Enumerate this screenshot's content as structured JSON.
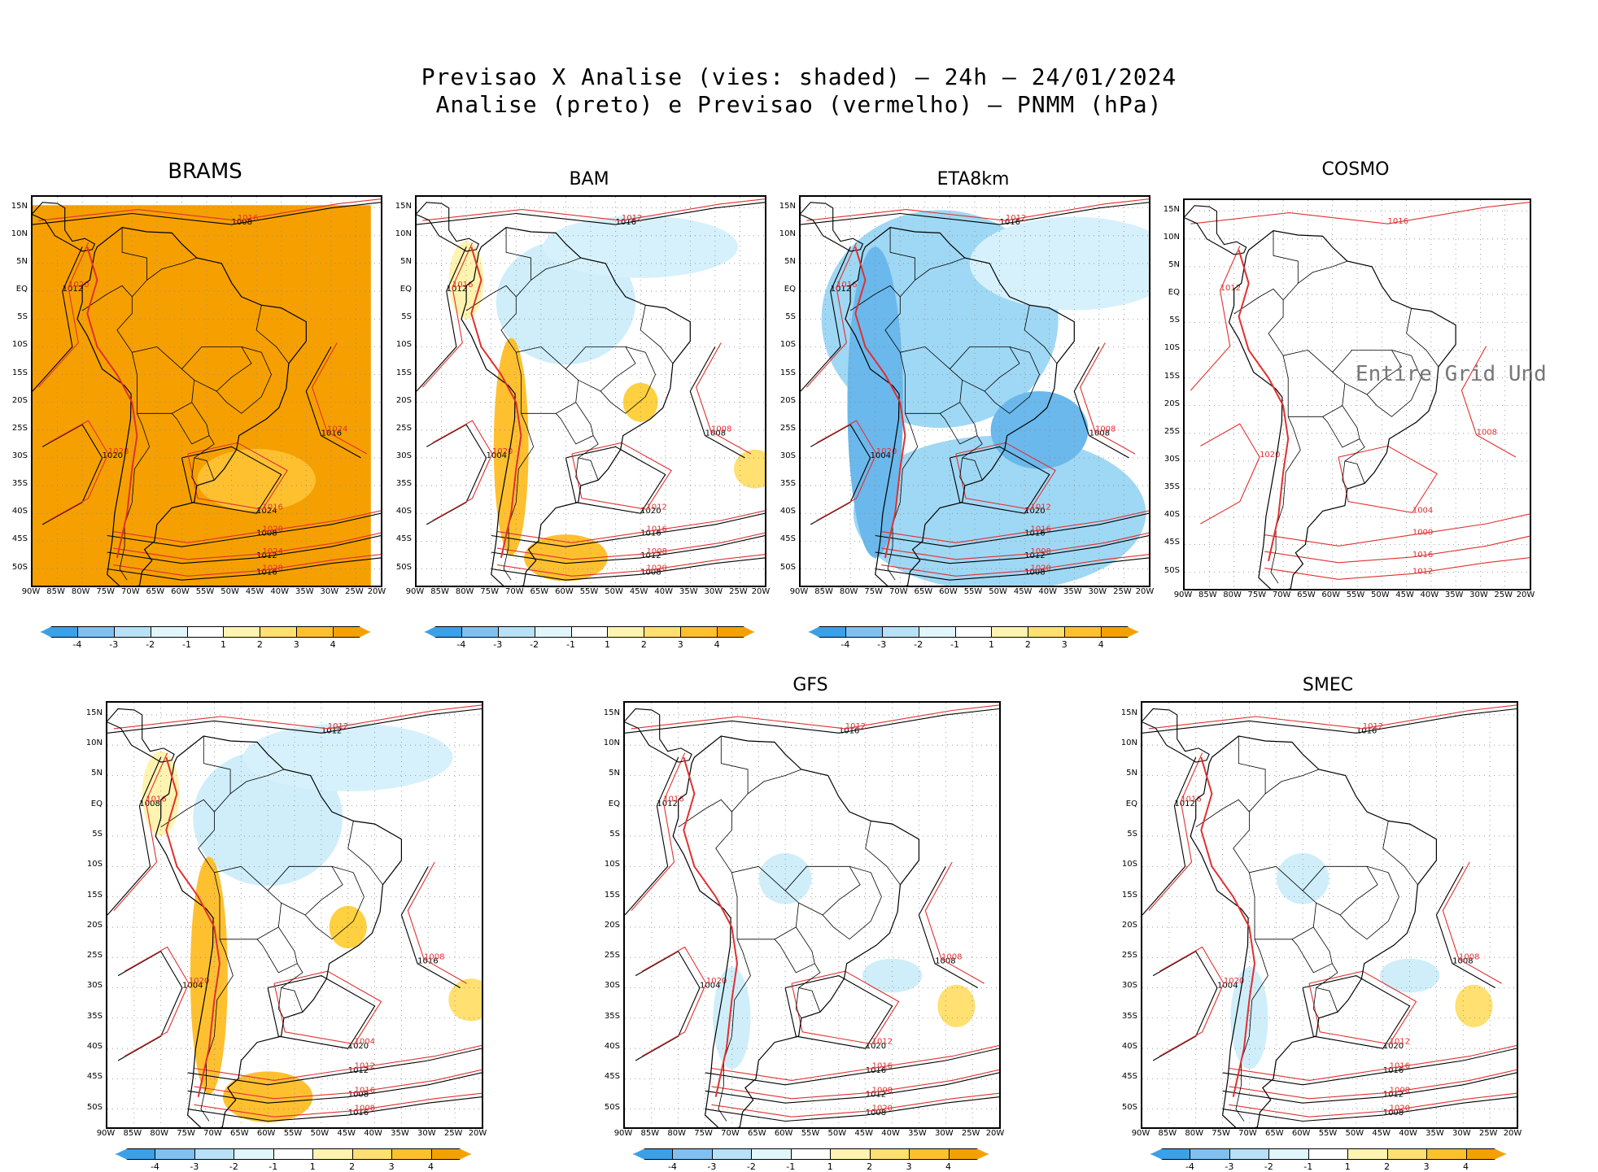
{
  "title": {
    "line1": "Previsao X Analise (vies: shaded) – 24h – 24/01/2024",
    "line2": "Analise (preto) e Previsao (vermelho) – PNMM (hPa)"
  },
  "axes": {
    "lat_labels": [
      "15N",
      "10N",
      "5N",
      "EQ",
      "5S",
      "10S",
      "15S",
      "20S",
      "25S",
      "30S",
      "35S",
      "40S",
      "45S",
      "50S"
    ],
    "lon_labels": [
      "90W",
      "85W",
      "80W",
      "75W",
      "70W",
      "65W",
      "60W",
      "55W",
      "50W",
      "45W",
      "40W",
      "35W",
      "30W",
      "25W",
      "20W"
    ]
  },
  "colorbar": {
    "ticks": [
      "-4",
      "-3",
      "-2",
      "-1",
      "1",
      "2",
      "3",
      "4"
    ],
    "colors": [
      "#3aa0e8",
      "#7fc0f0",
      "#b8e0f6",
      "#e0f6fb",
      "#ffffff",
      "#fff3b0",
      "#ffe070",
      "#ffc030",
      "#f6a000"
    ]
  },
  "colors": {
    "analysis": "#000000",
    "forecast": "#e03030",
    "neg_bias": "#9fd8f4",
    "pos_bias": "#ffd040",
    "full_pos": "#f5a000"
  },
  "panels": [
    {
      "id": "brams",
      "title": "BRAMS",
      "bias": "full",
      "isobars_a": [
        "1008",
        "1012",
        "1016",
        "1020",
        "1024"
      ],
      "isobars_f": [
        "1016",
        "1020",
        "1024",
        "1028"
      ]
    },
    {
      "id": "bam",
      "title": "BAM",
      "bias": "mixed",
      "isobars_a": [
        "1016",
        "1012",
        "1008",
        "1004",
        "1020"
      ],
      "isobars_f": [
        "1012",
        "1016",
        "1008",
        "1020"
      ]
    },
    {
      "id": "eta",
      "title": "ETA8km",
      "bias": "negative",
      "isobars_a": [
        "1016",
        "1012",
        "1008",
        "1004",
        "1020"
      ],
      "isobars_f": [
        "1012",
        "1016",
        "1008",
        "1020"
      ]
    },
    {
      "id": "cosmo",
      "title": "COSMO",
      "bias": "none",
      "undefined_text": "Entire Grid Und",
      "isobars_a": [],
      "isobars_f": [
        "1016",
        "1012",
        "1008",
        "1020",
        "1004",
        "1000"
      ]
    },
    {
      "id": "unnamed",
      "title": "",
      "bias": "mixed",
      "isobars_a": [
        "1012",
        "1008",
        "1016",
        "1004",
        "1020"
      ],
      "isobars_f": [
        "1012",
        "1016",
        "1008",
        "1020",
        "1004"
      ]
    },
    {
      "id": "gfs",
      "title": "GFS",
      "bias": "light",
      "isobars_a": [
        "1016",
        "1012",
        "1008",
        "1004",
        "1020"
      ],
      "isobars_f": [
        "1012",
        "1016",
        "1008",
        "1020"
      ]
    },
    {
      "id": "smec",
      "title": "SMEC",
      "bias": "light",
      "isobars_a": [
        "1016",
        "1012",
        "1008",
        "1004",
        "1020"
      ],
      "isobars_f": [
        "1012",
        "1016",
        "1008",
        "1020"
      ]
    }
  ]
}
